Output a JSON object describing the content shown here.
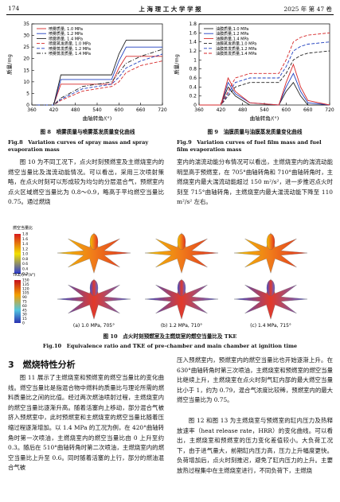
{
  "header": {
    "page": "174",
    "journal": "上 海 理 工 大 学 学 报",
    "issue": "2025 年 第 47 卷"
  },
  "chart_data": [
    {
      "type": "line",
      "y_label": "质量/mg",
      "x_label": "曲轴转角/(°)",
      "x": [
        360,
        420,
        440,
        500,
        580,
        600,
        620,
        660,
        720
      ],
      "xlim": [
        360,
        720
      ],
      "xticks": [
        360,
        420,
        480,
        540,
        600,
        660,
        720
      ],
      "ylim": [
        0,
        35
      ],
      "yticks": [
        0,
        5,
        10,
        15,
        20,
        25,
        30,
        35
      ],
      "series": [
        {
          "name": "喷雾质量, 1.0 MPa",
          "color": "#d62728",
          "style": "solid",
          "values": [
            0,
            0,
            9,
            9,
            9,
            16,
            21,
            21,
            21
          ]
        },
        {
          "name": "喷雾质量, 1.2 MPa",
          "color": "#1f3fbf",
          "style": "solid",
          "values": [
            0,
            0,
            11,
            11,
            11,
            19,
            25,
            25,
            25
          ]
        },
        {
          "name": "喷雾质量, 1.4 MPa",
          "color": "#222222",
          "style": "solid",
          "values": [
            0,
            0,
            13,
            13,
            13,
            22,
            28,
            28,
            28
          ]
        },
        {
          "name": "喷雾蒸发质量, 1.0 MPa",
          "color": "#d62728",
          "style": "dashed",
          "values": [
            0,
            0,
            2,
            6,
            8,
            10,
            14,
            17,
            19
          ]
        },
        {
          "name": "喷雾蒸发质量, 1.2 MPa",
          "color": "#1f3fbf",
          "style": "dashed",
          "values": [
            0,
            0,
            2.5,
            7,
            9,
            12,
            16,
            19,
            22
          ]
        },
        {
          "name": "喷雾蒸发质量, 1.4 MPa",
          "color": "#222222",
          "style": "dashdot",
          "values": [
            0,
            0,
            3,
            8,
            10,
            14,
            18,
            21,
            24
          ]
        }
      ]
    },
    {
      "type": "line",
      "y_label": "质量/mg",
      "x_label": "曲轴转角/(°)",
      "x": [
        360,
        420,
        440,
        460,
        500,
        580,
        600,
        620,
        640,
        660,
        720
      ],
      "xlim": [
        360,
        720
      ],
      "xticks": [
        360,
        420,
        480,
        540,
        600,
        660,
        720
      ],
      "ylim": [
        0,
        1.8
      ],
      "yticks": [
        0,
        0.2,
        0.4,
        0.6,
        0.8,
        1,
        1.2,
        1.4,
        1.6,
        1.8
      ],
      "series": [
        {
          "name": "油膜质量,1.0 MPa",
          "color": "#222222",
          "style": "solid",
          "values": [
            0,
            0,
            0.4,
            0.2,
            0,
            0,
            0.3,
            0.5,
            0.2,
            0,
            0
          ]
        },
        {
          "name": "油膜质量,1.2 MPa",
          "color": "#1f3fbf",
          "style": "solid",
          "values": [
            0,
            0,
            0.5,
            0.25,
            0.05,
            0,
            0.4,
            0.7,
            0.3,
            0.05,
            0
          ]
        },
        {
          "name": "油膜质量,1.4 MPa",
          "color": "#d62728",
          "style": "solid",
          "values": [
            0,
            0,
            0.6,
            0.3,
            0.05,
            0,
            0.5,
            0.9,
            0.4,
            0.1,
            0
          ]
        },
        {
          "name": "油膜蒸发质量,1.0 MPa",
          "color": "#222222",
          "style": "dashed",
          "values": [
            0,
            0,
            0.2,
            0.4,
            0.5,
            0.5,
            0.7,
            1,
            1.1,
            1.15,
            1.2
          ]
        },
        {
          "name": "油膜蒸发质量,1.2 MPa",
          "color": "#1f3fbf",
          "style": "dashed",
          "values": [
            0,
            0,
            0.25,
            0.5,
            0.6,
            0.6,
            0.85,
            1.2,
            1.3,
            1.35,
            1.4
          ]
        },
        {
          "name": "油膜蒸发质量,1.4 MPa",
          "color": "#d62728",
          "style": "dashed",
          "values": [
            0,
            0,
            0.3,
            0.6,
            0.7,
            0.7,
            1,
            1.4,
            1.5,
            1.55,
            1.6
          ]
        }
      ]
    }
  ],
  "fig8": {
    "caption_cn": "图 8　喷雾质量与喷雾蒸发质量变化曲线",
    "caption_en": "Fig.8　Variation curves of spray mass and spray evaporation mass"
  },
  "fig9": {
    "caption_cn": "图 9　油膜质量与油膜蒸发质量变化曲线",
    "caption_en": "Fig.9　Variation curves of fuel film mass and fuel film evaporation mass"
  },
  "fig10": {
    "colorbar1_title": "燃空当量比",
    "colorbar1_labels": [
      "1.8",
      "1.6",
      "1.4",
      "1.2",
      "1.0",
      "0.8",
      "0.6",
      "0.4",
      "0.2"
    ],
    "colorbar2_title": "TKE/(m²/s²)",
    "colorbar2_labels": [
      "150",
      "135",
      "120",
      "105",
      "90",
      "75",
      "60",
      "45",
      "30",
      "15",
      "0"
    ],
    "panels": [
      "(a) 1.0 MPa, 705°",
      "(b) 1.2 MPa, 710°",
      "(c) 1.4 MPa, 715°"
    ],
    "caption_cn": "图 10　点火时刻预燃室及主燃烧室的燃空当量比及 TKE",
    "caption_en": "Fig.10　Equivalence ratio and TKE of pre-chamber and main chamber at ignition time"
  },
  "body": {
    "p1_left": "图 10 为不同工况下，点火时刻预燃室及主燃烧室内的燃空当量比及湍流动能情况。可以看出，采用三次喷射策略，在点火时刻可以形成较为均匀的分层混合气，预燃室内点火区域燃空当量比为 0.8～0.9，略高于平均燃空当量比 0.75。通过燃烧",
    "p1_right": "室内的湍流动能分布情况可以看出，主燃烧室内的湍流动能明显高于预燃室，在 705°曲轴转角和 710°曲轴转角时，主燃烧室内最大湍流动能超过 150 m²/s²，进一步推迟点火时刻至 715°曲轴转角，主燃烧室内最大湍流动能下降至 110 m²/s² 左右。",
    "section": "3　燃烧特性分析",
    "p2_left": "图 11 展示了主燃烧室和预燃室的燃空当量比的变化曲线。燃空当量比是指混合物中燃料的质量比与理论所需的燃料质量比之间的比值。经过两次燃油喷射过程，主燃烧室内的燃空当量比逐渐升高。随着活塞向上移动，部分混合气被挤入预燃室中，此时预燃室和主燃烧室的燃空当量比随着压缩过程逐渐增加。以 1.4 MPa 的工况为例，在 420°曲轴转角时第一次喷油，主燃烧室内的燃空当量比由 0 上升至约 0.3。随后在 510°曲轴转角时第二次喷油，主燃烧室内的燃空当量比上升至 0.6。同时随着活塞的上行，部分的燃油混合气被",
    "p2_right": "压入预燃室内，预燃室内的燃空当量比也开始逐渐上升。在 630°曲轴转角时第三次喷油，主燃烧室和预燃室的燃空当量比继续上升，主燃烧室在点火时刻气缸内部的最大燃空当量比小于 1，约为 0.79，混合气浓度比较稀，预燃室内的最大燃空当量比为 0.75。",
    "p3_right": "图 12 和图 13 为主燃烧室与预燃室的缸内压力及热释放速率（heat release rate，HRR）的变化曲线。可以看出，主燃烧室和预燃室的压力变化差值较小。大负荷工况下，由于进气量大，前期缸内压力高，压力上升幅度更快。负荷增加后，点火时刻推迟，避免了缸内压力的上升。主要放热过程集中在主燃烧室进行，不同负荷下，主燃烧"
  }
}
